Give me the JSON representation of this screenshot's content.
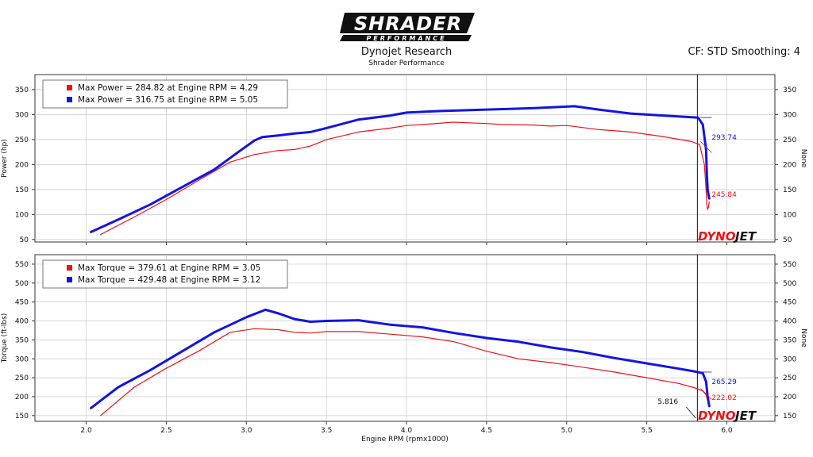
{
  "header": {
    "logo_text": "SHRADER",
    "logo_sub": "PERFORMANCE",
    "title": "Dynojet Research",
    "subtitle": "Shrader Performance",
    "settings": "CF: STD Smoothing: 4"
  },
  "colors": {
    "run1": "#e8141b",
    "run2": "#1414e0",
    "grid": "#c8c8c8",
    "panel": "#ffffff"
  },
  "watermark": {
    "part1": "DYNO",
    "part2": "JET"
  },
  "chart_data": [
    {
      "type": "line",
      "panel": "power",
      "ylabel": "Power (hp)",
      "ylabel_right": "None",
      "xlim": [
        1.68,
        6.3
      ],
      "ylim": [
        45,
        380
      ],
      "yticks": [
        50,
        100,
        150,
        200,
        250,
        300,
        350
      ],
      "cursor_x": 5.816,
      "legend": [
        {
          "text": "Max Power = 284.82 at Engine RPM = 4.29",
          "color": "#e8141b"
        },
        {
          "text": "Max Power = 316.75 at Engine RPM = 5.05",
          "color": "#1414e0"
        }
      ],
      "series": [
        {
          "color": "#e8141b",
          "width": 1.2,
          "cursor_value": "245.84",
          "x": [
            2.09,
            2.3,
            2.5,
            2.7,
            2.9,
            3.05,
            3.2,
            3.3,
            3.4,
            3.5,
            3.7,
            3.9,
            4.0,
            4.1,
            4.29,
            4.5,
            4.6,
            4.8,
            4.9,
            5.0,
            5.2,
            5.4,
            5.6,
            5.78,
            5.83,
            5.86,
            5.87,
            5.875,
            5.88,
            5.885,
            5.89
          ],
          "y": [
            60,
            95,
            130,
            168,
            205,
            220,
            228,
            230,
            237,
            250,
            265,
            273,
            278,
            280,
            284.8,
            282,
            280,
            279,
            277,
            278,
            270,
            265,
            256,
            246,
            240,
            200,
            150,
            120,
            110,
            115,
            125
          ]
        },
        {
          "color": "#1414e0",
          "width": 3,
          "cursor_value": "293.74",
          "x": [
            2.03,
            2.2,
            2.4,
            2.6,
            2.8,
            2.95,
            3.05,
            3.1,
            3.2,
            3.3,
            3.4,
            3.5,
            3.7,
            3.9,
            4.0,
            4.2,
            4.4,
            4.6,
            4.8,
            5.05,
            5.2,
            5.4,
            5.6,
            5.76,
            5.82,
            5.85,
            5.87,
            5.875,
            5.88,
            5.885,
            5.89
          ],
          "y": [
            65,
            90,
            120,
            155,
            190,
            225,
            248,
            255,
            258,
            262,
            265,
            273,
            290,
            298,
            304,
            307,
            309,
            311,
            313,
            316.7,
            310,
            302,
            298,
            295,
            294,
            280,
            230,
            180,
            150,
            140,
            132
          ]
        }
      ]
    },
    {
      "type": "line",
      "panel": "torque",
      "ylabel": "Torque (ft-lbs)",
      "ylabel_right": "None",
      "xlabel": "Engine RPM (rpmx1000)",
      "xlim": [
        1.68,
        6.3
      ],
      "ylim": [
        135,
        575
      ],
      "yticks": [
        150,
        200,
        250,
        300,
        350,
        400,
        450,
        500,
        550
      ],
      "xticks": [
        2.0,
        2.5,
        3.0,
        3.5,
        4.0,
        4.5,
        5.0,
        5.5,
        6.0
      ],
      "cursor_x": 5.816,
      "cursor_label": "5.816",
      "legend": [
        {
          "text": "Max Torque = 379.61 at Engine RPM = 3.05",
          "color": "#e8141b"
        },
        {
          "text": "Max Torque = 429.48 at Engine RPM = 3.12",
          "color": "#1414e0"
        }
      ],
      "series": [
        {
          "color": "#e8141b",
          "width": 1.2,
          "cursor_value": "222.02",
          "x": [
            2.09,
            2.3,
            2.5,
            2.7,
            2.9,
            3.05,
            3.2,
            3.3,
            3.4,
            3.5,
            3.7,
            3.9,
            4.1,
            4.3,
            4.5,
            4.7,
            4.9,
            5.1,
            5.3,
            5.5,
            5.7,
            5.81,
            5.85,
            5.87,
            5.88,
            5.89
          ],
          "y": [
            150,
            225,
            275,
            320,
            370,
            379.6,
            377,
            370,
            368,
            372,
            372,
            365,
            358,
            345,
            320,
            300,
            290,
            278,
            265,
            250,
            235,
            222,
            215,
            205,
            190,
            175
          ]
        },
        {
          "color": "#1414e0",
          "width": 3,
          "cursor_value": "265.29",
          "x": [
            2.03,
            2.2,
            2.4,
            2.6,
            2.8,
            3.0,
            3.12,
            3.2,
            3.3,
            3.4,
            3.5,
            3.7,
            3.9,
            4.1,
            4.3,
            4.5,
            4.7,
            4.9,
            5.1,
            5.3,
            5.5,
            5.7,
            5.78,
            5.82,
            5.85,
            5.87,
            5.88,
            5.89
          ],
          "y": [
            170,
            225,
            270,
            320,
            370,
            410,
            429.5,
            420,
            405,
            398,
            400,
            402,
            390,
            383,
            368,
            355,
            345,
            330,
            318,
            302,
            288,
            274,
            268,
            265,
            262,
            240,
            200,
            175
          ]
        }
      ]
    }
  ]
}
